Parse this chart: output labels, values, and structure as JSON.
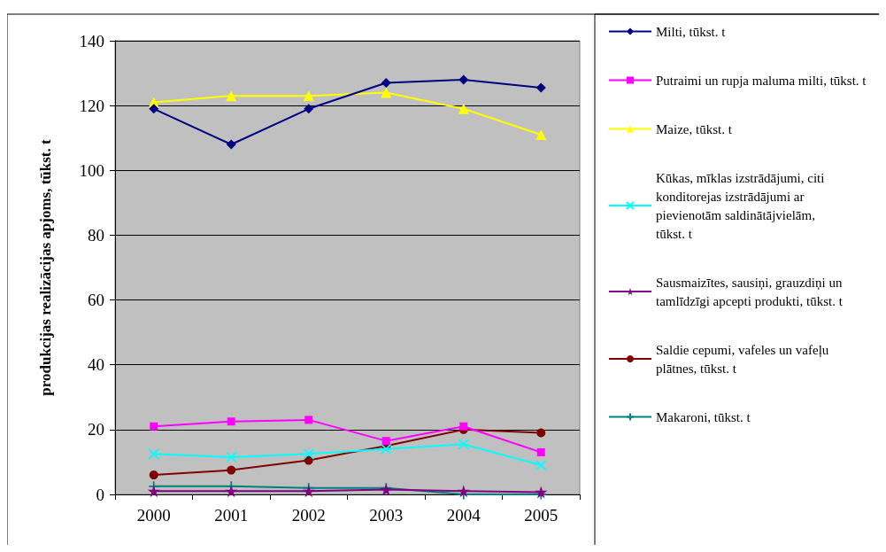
{
  "chart_data": {
    "type": "line",
    "ylabel": "produkcijas realizācijas apjoms, tūkst. t",
    "categories": [
      "2000",
      "2001",
      "2002",
      "2003",
      "2004",
      "2005"
    ],
    "ylim": [
      0,
      140
    ],
    "yticks": [
      0,
      20,
      40,
      60,
      80,
      100,
      120,
      140
    ],
    "grid": "y",
    "legend": "right",
    "series": [
      {
        "name": "Milti, tūkst. t",
        "color": "#000080",
        "marker": "diamond",
        "values": [
          119,
          108,
          119,
          127,
          128,
          125.5
        ]
      },
      {
        "name": "Putraimi un rupja maluma milti, tūkst. t",
        "color": "#ff00ff",
        "marker": "square",
        "values": [
          21,
          22.5,
          23,
          16.5,
          21,
          13
        ]
      },
      {
        "name": "Maize, tūkst. t",
        "color": "#ffff00",
        "marker": "triangle",
        "values": [
          121,
          123,
          123,
          124,
          119,
          111
        ]
      },
      {
        "name": "Kūkas, mīklas izstrādājumi, citi konditorejas izstrādājumi ar pievienotām saldinātājvielām, tūkst. t",
        "color": "#00ffff",
        "marker": "cross",
        "values": [
          12.5,
          11.5,
          12.5,
          14,
          15.5,
          9
        ]
      },
      {
        "name": "Sausmaizītes, sausiņi, grauzdiņi un tamlīdzīgi apcepti produkti, tūkst. t",
        "color": "#800080",
        "marker": "star",
        "values": [
          1,
          1,
          1,
          1.5,
          1,
          0.7
        ]
      },
      {
        "name": "Saldie cepumi, vafeles un vafeļu plātnes, tūkst. t",
        "color": "#800000",
        "marker": "circle",
        "values": [
          6,
          7.5,
          10.5,
          15,
          20,
          19
        ]
      },
      {
        "name": "Makaroni, tūkst. t",
        "color": "#008080",
        "marker": "plus",
        "values": [
          2.5,
          2.5,
          2,
          2,
          0,
          0
        ]
      }
    ]
  }
}
